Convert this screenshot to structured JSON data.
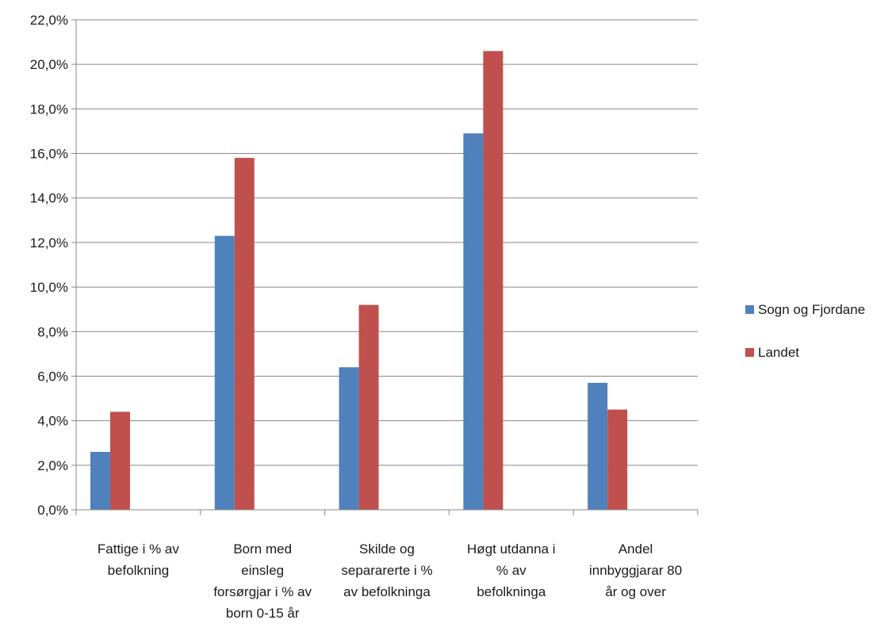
{
  "chart_data": {
    "type": "bar",
    "categories": [
      [
        "Fattige i % av",
        "befolkning"
      ],
      [
        "Born med",
        "einsleg",
        "forsørgjar i % av",
        "born 0-15 år"
      ],
      [
        "Skilde og",
        "separarerte i %",
        "av befolkninga"
      ],
      [
        "Høgt utdanna i",
        "% av",
        "befolkninga"
      ],
      [
        "Andel",
        "innbyggjarar 80",
        "år og over"
      ]
    ],
    "series": [
      {
        "name": "Sogn og Fjordane",
        "color": "#4f81bd",
        "values": [
          2.6,
          12.3,
          6.4,
          16.9,
          5.7
        ]
      },
      {
        "name": "Landet",
        "color": "#c0504d",
        "values": [
          4.4,
          15.8,
          9.2,
          20.6,
          4.5
        ]
      }
    ],
    "ylim": [
      0,
      22
    ],
    "ytick_step": 2,
    "ytick_labels": [
      "0,0%",
      "2,0%",
      "4,0%",
      "6,0%",
      "8,0%",
      "10,0%",
      "12,0%",
      "14,0%",
      "16,0%",
      "18,0%",
      "20,0%",
      "22,0%"
    ],
    "grid": true,
    "legend_position": "right"
  }
}
